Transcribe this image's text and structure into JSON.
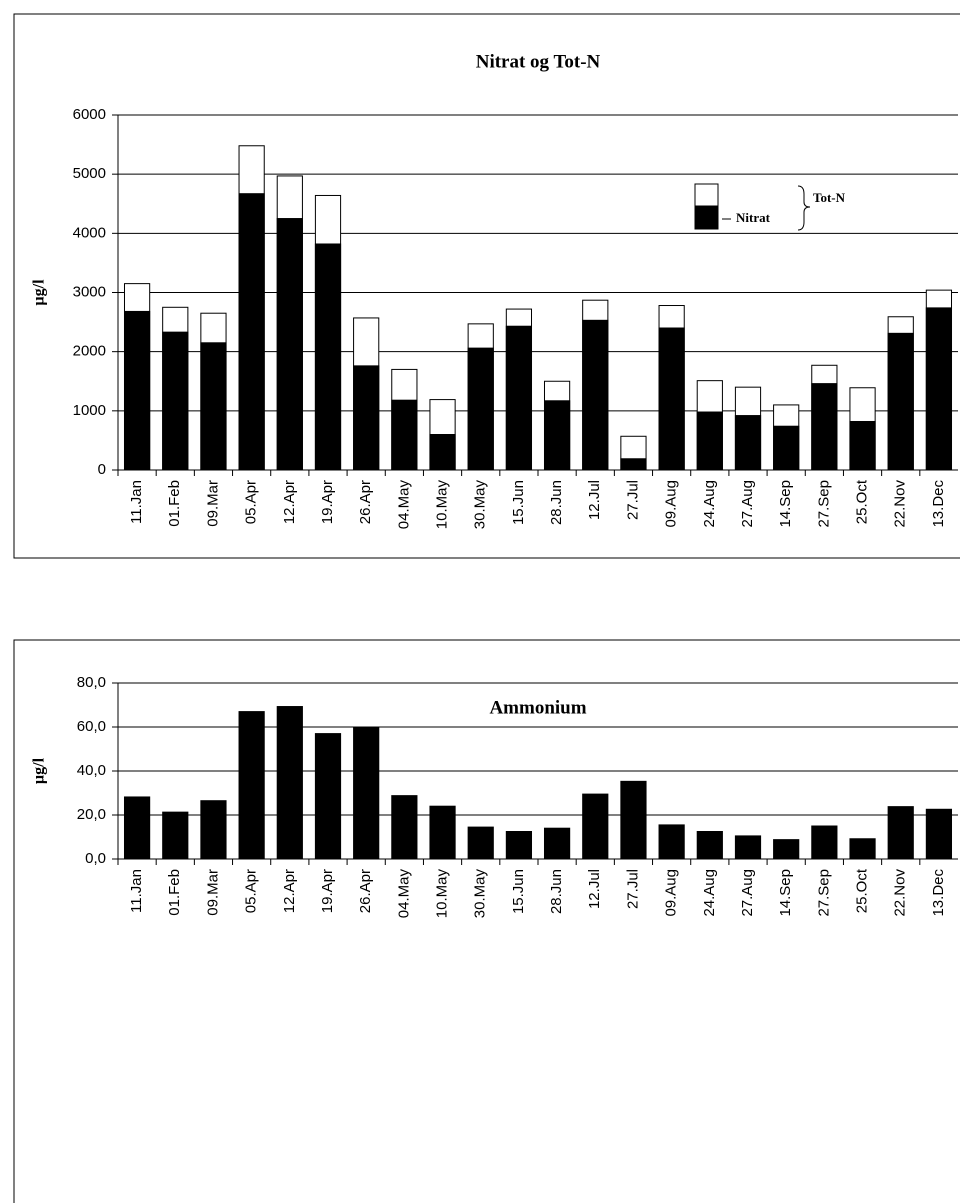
{
  "chart_data": [
    {
      "type": "bar",
      "title": "Nitrat og Tot-N",
      "ylabel": "µg/l",
      "categories": [
        "11.Jan",
        "01.Feb",
        "09.Mar",
        "05.Apr",
        "12.Apr",
        "19.Apr",
        "26.Apr",
        "04.May",
        "10.May",
        "30.May",
        "15.Jun",
        "28.Jun",
        "12.Jul",
        "27.Jul",
        "09.Aug",
        "24.Aug",
        "27.Aug",
        "14.Sep",
        "27.Sep",
        "25.Oct",
        "22.Nov",
        "13.Dec"
      ],
      "series": [
        {
          "name": "Tot-N",
          "color": "#ffffff",
          "values": [
            3150,
            2750,
            2650,
            5480,
            4970,
            4640,
            2570,
            1700,
            1190,
            2470,
            2720,
            1500,
            2870,
            570,
            2780,
            1510,
            1400,
            1100,
            1770,
            1390,
            2590,
            3040
          ]
        },
        {
          "name": "Nitrat",
          "color": "#000000",
          "values": [
            2680,
            2330,
            2150,
            4670,
            4250,
            3820,
            1760,
            1180,
            600,
            2060,
            2430,
            1170,
            2530,
            190,
            2400,
            980,
            920,
            740,
            1460,
            820,
            2310,
            2740
          ]
        }
      ],
      "ylim": [
        0,
        6000
      ],
      "yticks": [
        0,
        1000,
        2000,
        3000,
        4000,
        5000,
        6000
      ],
      "grid": true
    },
    {
      "type": "bar",
      "title": "Ammonium",
      "ylabel": "µg/l",
      "categories": [
        "11.Jan",
        "01.Feb",
        "09.Mar",
        "05.Apr",
        "12.Apr",
        "19.Apr",
        "26.Apr",
        "04.May",
        "10.May",
        "30.May",
        "15.Jun",
        "28.Jun",
        "12.Jul",
        "27.Jul",
        "09.Aug",
        "24.Aug",
        "27.Aug",
        "14.Sep",
        "27.Sep",
        "25.Oct",
        "22.Nov",
        "13.Dec"
      ],
      "series": [
        {
          "name": "Ammonium",
          "color": "#000000",
          "values": [
            28.2,
            21.3,
            26.5,
            67,
            69.3,
            57,
            60,
            28.8,
            24,
            14.5,
            12.5,
            14,
            29.5,
            35.3,
            15.5,
            12.5,
            10.5,
            8.8,
            15,
            9.2,
            23.8,
            22.6
          ]
        }
      ],
      "ylim": [
        0,
        80
      ],
      "yticks": [
        {
          "value": 0,
          "label": "0,0"
        },
        {
          "value": 20,
          "label": "20,0"
        },
        {
          "value": 40,
          "label": "40,0"
        },
        {
          "value": 60,
          "label": "60,0"
        },
        {
          "value": 80,
          "label": "80,0"
        }
      ],
      "grid": true
    }
  ]
}
